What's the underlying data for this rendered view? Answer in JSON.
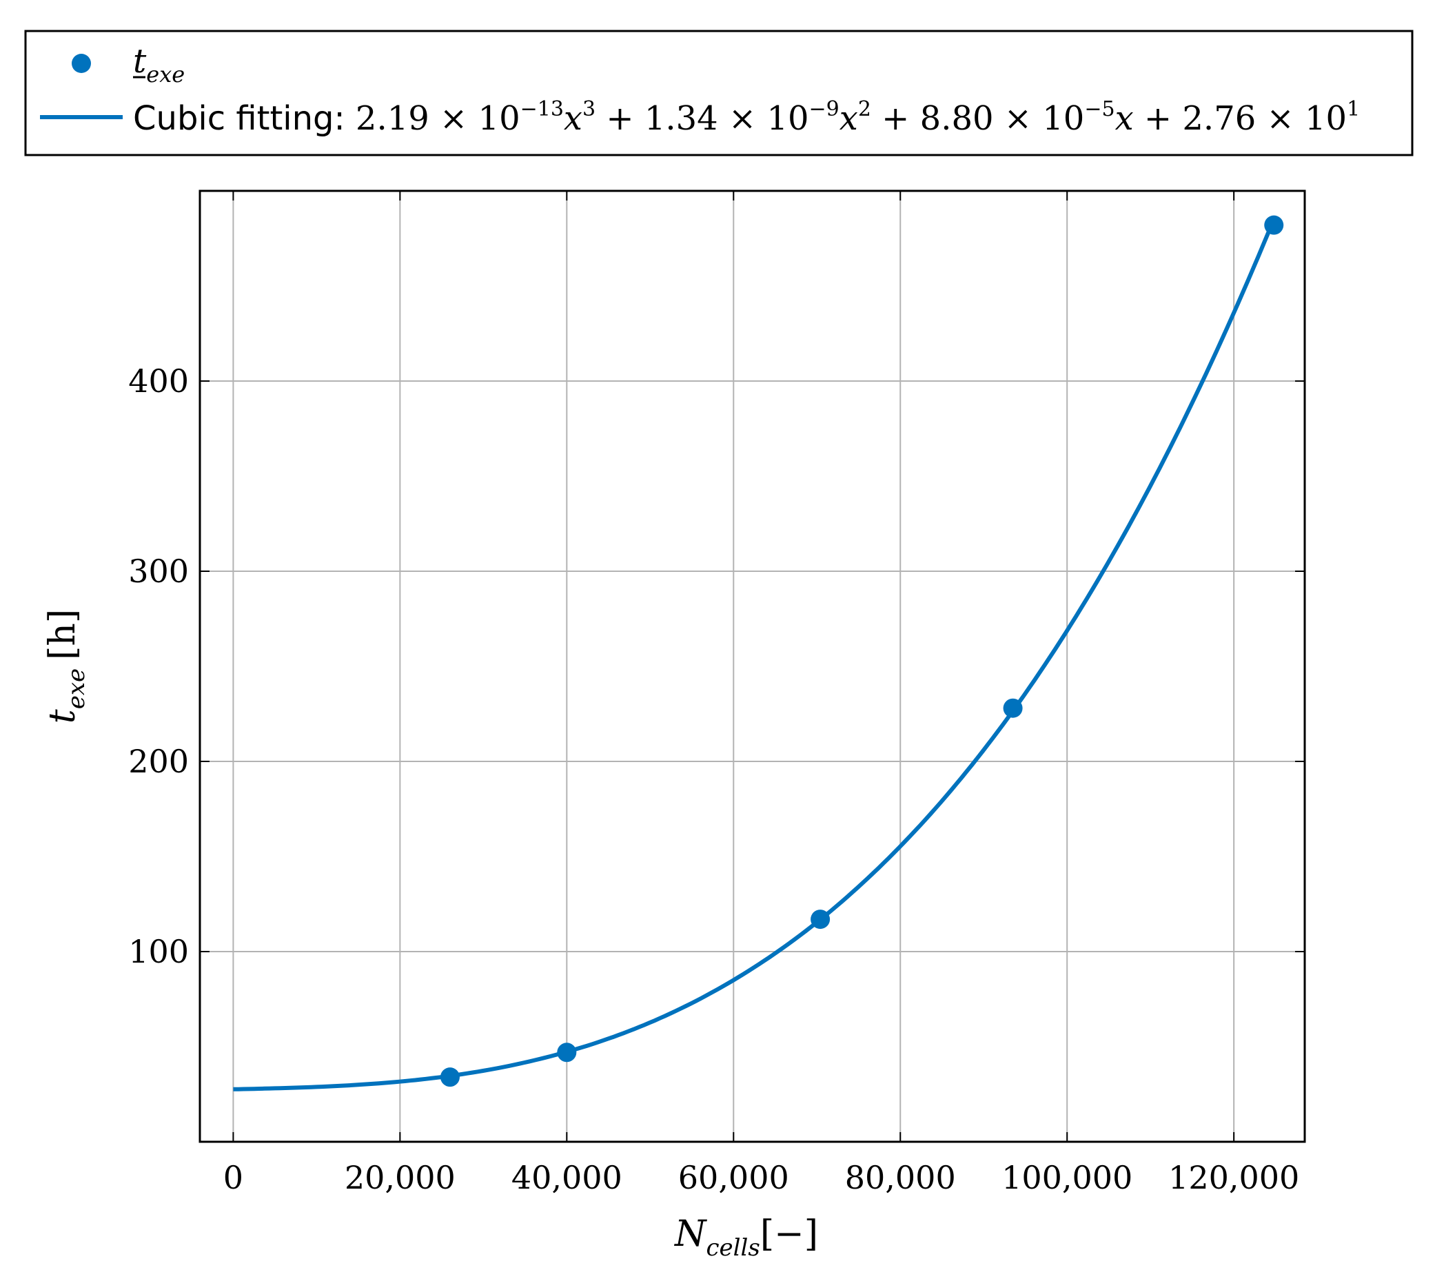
{
  "chart_data": {
    "type": "scatter",
    "series": [
      {
        "name": "t_exe",
        "label_base": "t",
        "label_sub": "exe",
        "kind": "markers",
        "x": [
          26000,
          40000,
          70400,
          93500,
          124800
        ],
        "y": [
          34,
          47,
          117,
          228,
          482
        ]
      },
      {
        "name": "Cubic fitting: 2.19 × 10⁻¹³x³ + 1.34 × 10⁻⁹x² + 8.80 × 10⁻⁵x + 2.76 × 10¹",
        "kind": "line",
        "label_prefix": "Cubic fitting: ",
        "coefficients": {
          "c3": {
            "mant": "2.19",
            "exp": "−13"
          },
          "c2": {
            "mant": "1.34",
            "exp": "−9"
          },
          "c1": {
            "mant": "8.80",
            "exp": "−5"
          },
          "c0": {
            "mant": "2.76",
            "exp": "1"
          }
        },
        "formula": [
          2.19e-13,
          1.34e-09,
          8.8e-05,
          27.6
        ]
      }
    ],
    "xlabel_base": "N",
    "xlabel_sub": "cells",
    "xlabel_unit": "[−]",
    "ylabel_base": "t",
    "ylabel_sub": "exe",
    "ylabel_unit": "[h]",
    "xlim": [
      -4000,
      128500
    ],
    "ylim": [
      0,
      500
    ],
    "xticks": [
      0,
      20000,
      40000,
      60000,
      80000,
      100000,
      120000
    ],
    "xtick_labels": [
      "0",
      "20,000",
      "40,000",
      "60,000",
      "80,000",
      "100,000",
      "120,000"
    ],
    "yticks": [
      100,
      200,
      300,
      400
    ],
    "ytick_labels": [
      "100",
      "200",
      "300",
      "400"
    ],
    "grid": true,
    "legend_position": "top, above plot",
    "color": "#0072BD"
  }
}
